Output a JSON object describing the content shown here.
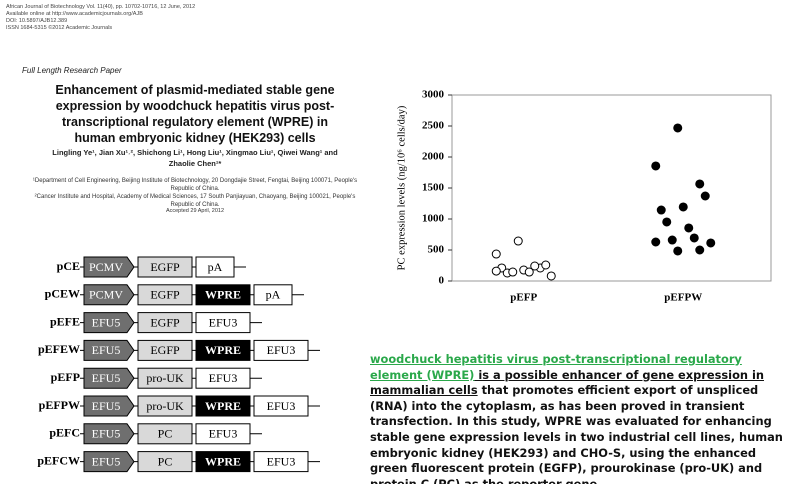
{
  "paper": {
    "journal_lines": [
      "African Journal of Biotechnology Vol. 11(40), pp. 10702-10716, 12 June, 2012",
      "Available online at http://www.academicjournals.org/AJB",
      "DOI: 10.5897/AJB12.389",
      "ISSN 1684-5315 ©2012 Academic Journals"
    ],
    "article_type": "Full Length Research Paper",
    "title": "Enhancement of plasmid-mediated stable gene expression by woodchuck hepatitis virus post-transcriptional regulatory element (WPRE) in human embryonic kidney (HEK293) cells",
    "authors": "Lingling Ye¹, Jian Xu¹˒², Shichong Li¹, Hong Liu¹, Xingmao Liu¹, Qiwei Wang¹ and Zhaolie Chen¹*",
    "affiliations": [
      "¹Department of Cell Engineering, Beijing Institute of Biotechnology, 20 Dongdajie Street, Fengtai, Beijing 100071, People's Republic of China.",
      "²Cancer Institute and Hospital, Academy of Medical Sciences, 17 South Panjiayuan, Chaoyang, Beijing 100021, People's Republic of China."
    ],
    "accepted": "Accepted 29 April, 2012"
  },
  "constructs": [
    {
      "name": "pCE",
      "parts": [
        {
          "label": "PCMV",
          "kind": "promoter"
        },
        {
          "label": "EGFP",
          "kind": "gene"
        },
        {
          "label": "pA",
          "kind": "terminator"
        }
      ]
    },
    {
      "name": "pCEW",
      "parts": [
        {
          "label": "PCMV",
          "kind": "promoter"
        },
        {
          "label": "EGFP",
          "kind": "gene"
        },
        {
          "label": "WPRE",
          "kind": "wpre"
        },
        {
          "label": "pA",
          "kind": "terminator"
        }
      ]
    },
    {
      "name": "pEFE",
      "parts": [
        {
          "label": "EFU5",
          "kind": "promoter"
        },
        {
          "label": "EGFP",
          "kind": "gene"
        },
        {
          "label": "EFU3",
          "kind": "terminator"
        }
      ]
    },
    {
      "name": "pEFEW",
      "parts": [
        {
          "label": "EFU5",
          "kind": "promoter"
        },
        {
          "label": "EGFP",
          "kind": "gene"
        },
        {
          "label": "WPRE",
          "kind": "wpre"
        },
        {
          "label": "EFU3",
          "kind": "terminator"
        }
      ]
    },
    {
      "name": "pEFP",
      "parts": [
        {
          "label": "EFU5",
          "kind": "promoter"
        },
        {
          "label": "pro-UK",
          "kind": "gene"
        },
        {
          "label": "EFU3",
          "kind": "terminator"
        }
      ]
    },
    {
      "name": "pEFPW",
      "parts": [
        {
          "label": "EFU5",
          "kind": "promoter"
        },
        {
          "label": "pro-UK",
          "kind": "gene"
        },
        {
          "label": "WPRE",
          "kind": "wpre"
        },
        {
          "label": "EFU3",
          "kind": "terminator"
        }
      ]
    },
    {
      "name": "pEFC",
      "parts": [
        {
          "label": "EFU5",
          "kind": "promoter"
        },
        {
          "label": "PC",
          "kind": "gene"
        },
        {
          "label": "EFU3",
          "kind": "terminator"
        }
      ]
    },
    {
      "name": "pEFCW",
      "parts": [
        {
          "label": "EFU5",
          "kind": "promoter"
        },
        {
          "label": "PC",
          "kind": "gene"
        },
        {
          "label": "WPRE",
          "kind": "wpre"
        },
        {
          "label": "EFU3",
          "kind": "terminator"
        }
      ]
    }
  ],
  "chart_data": {
    "type": "strip",
    "ylabel": "PC expression levels (ng/10⁶ cells/day)",
    "categories": [
      "pEFP",
      "pEFPW"
    ],
    "values": [
      [
        435,
        645,
        210,
        210,
        177,
        258,
        129,
        145,
        81,
        145,
        242,
        160
      ],
      [
        1855,
        2468,
        1565,
        1145,
        1194,
        1371,
        952,
        855,
        613,
        661,
        694,
        629,
        484,
        500
      ]
    ],
    "marker_fill": [
      "#ffffff",
      "#000000"
    ],
    "ylim": [
      0,
      3000
    ],
    "yticks": [
      0,
      500,
      1000,
      1500,
      2000,
      2500,
      3000
    ]
  },
  "summary": {
    "link": "woodchuck hepatitis virus post-transcriptional regulatory element (WPRE)",
    "underlined": " is a possible enhancer of gene expression in mammalian cells",
    "rest": " that promotes efficient export of unspliced (RNA) into the cytoplasm, as has been proved in transient transfection. In this study, WPRE was evaluated for enhancing stable gene expression levels in two industrial cell lines, human embryonic kidney (HEK293) and CHO-S, using the enhanced green fluorescent protein (EGFP), prourokinase (pro-UK) and protein C (PC) as the reporter gene."
  }
}
